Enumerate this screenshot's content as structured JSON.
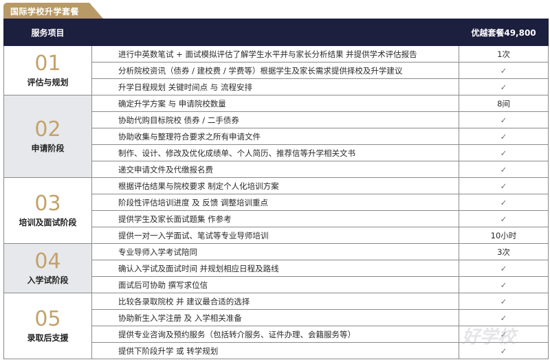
{
  "tab_title": "国际学校升学套餐",
  "header": {
    "service_col": "服务项目",
    "package_col": "优越套餐49,800"
  },
  "colors": {
    "header_bg": "#1d1f3f",
    "accent_gold": "#c3a26a",
    "tab_bg": "#b89a66",
    "stage_gray": "#e7e8eb"
  },
  "check_mark": "✓",
  "sections": [
    {
      "num": "01",
      "name": "评估与规划",
      "rows": [
        {
          "service": "进行中英数笔试 + 面试模拟评估了解学生水平并与家长分析结果 并提供学术评估报告",
          "value": "1次"
        },
        {
          "service": "分析院校资讯（债券 / 建校费 / 学费等）根据学生及家长需求提供择校及升学建议",
          "value": "✓"
        },
        {
          "service": "升学日程规划 关键时间点 与 流程安排",
          "value": "✓"
        }
      ]
    },
    {
      "num": "02",
      "name": "申请阶段",
      "rows": [
        {
          "service": "确定升学方案 与 申请院校数量",
          "value": "8间"
        },
        {
          "service": "协助代购目标院校 债券 / 二手债券",
          "value": "✓"
        },
        {
          "service": "协助收集与整理符合要求之所有申请文件",
          "value": "✓"
        },
        {
          "service": "制作、设计、修改及优化成绩单、个人简历、推荐信等升学相关文书",
          "value": "✓"
        },
        {
          "service": "递交申请文件及代缴报名费",
          "value": "✓"
        }
      ]
    },
    {
      "num": "03",
      "name": "培训及面试阶段",
      "rows": [
        {
          "service": "根据评估结果与院校要求 制定个人化培训方案",
          "value": "✓"
        },
        {
          "service": "阶段性评估培训进度 及 反馈 调整培训重点",
          "value": "✓"
        },
        {
          "service": "提供学生及家长面试题集 作参考",
          "value": "✓"
        },
        {
          "service": "提供一对一入学面试、笔试等专业导师培训",
          "value": "10小时"
        }
      ]
    },
    {
      "num": "04",
      "name": "入学试阶段",
      "rows": [
        {
          "service": "专业导师入学考试陪同",
          "value": "3次"
        },
        {
          "service": "确认入学试及面试时间 并规划相应日程及路线",
          "value": "✓"
        },
        {
          "service": "面试后可协助 撰写求位信",
          "value": "✓"
        }
      ]
    },
    {
      "num": "05",
      "name": "录取后支援",
      "rows": [
        {
          "service": "比较各录取院校 并 建议最合适的选择",
          "value": "✓"
        },
        {
          "service": "协助新生入学注册 及 入学相关准备",
          "value": "✓"
        },
        {
          "service": "提供专业咨询及预约服务（包括转介服务、证件办理、会籍服务等）",
          "value": "✓"
        },
        {
          "service": "提供下阶段升学 或 转学规划",
          "value": "✓"
        }
      ]
    }
  ],
  "watermark": "好学校 91goodschool.com"
}
